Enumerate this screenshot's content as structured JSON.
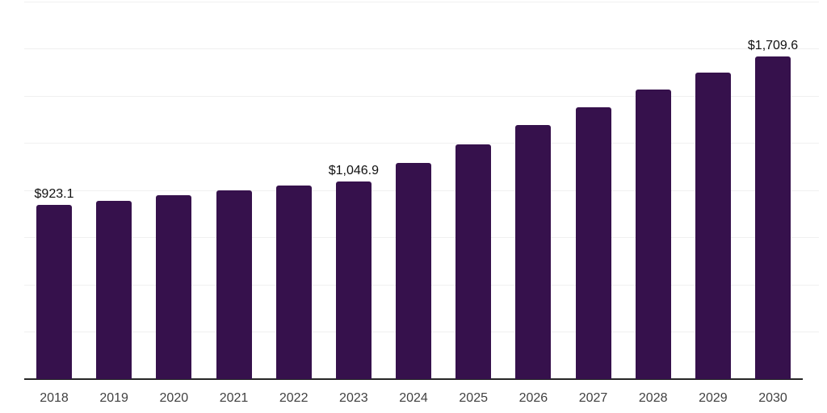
{
  "chart": {
    "background_color": "#ffffff",
    "bar_color": "#36114C",
    "gridline_color": "#f0f0f0",
    "axis_line_color": "#262626",
    "value_label_color": "#111111",
    "tick_label_color": "#414141"
  },
  "chart_data": {
    "type": "bar",
    "title": "",
    "xlabel": "",
    "ylabel": "",
    "categories": [
      "2018",
      "2019",
      "2020",
      "2021",
      "2022",
      "2023",
      "2024",
      "2025",
      "2026",
      "2027",
      "2028",
      "2029",
      "2030"
    ],
    "values": [
      923.1,
      945.0,
      972.5,
      998.5,
      1027.0,
      1046.9,
      1143.5,
      1243.0,
      1345.5,
      1439.0,
      1534.5,
      1622.5,
      1709.6
    ],
    "point_labels": {
      "2018": "$923.1",
      "2023": "$1,046.9",
      "2030": "$1,709.6"
    },
    "ylim": [
      0,
      2000
    ],
    "gridline_step": 250,
    "grid": true,
    "y_tick_labels_shown": false,
    "legend_position": "none"
  }
}
